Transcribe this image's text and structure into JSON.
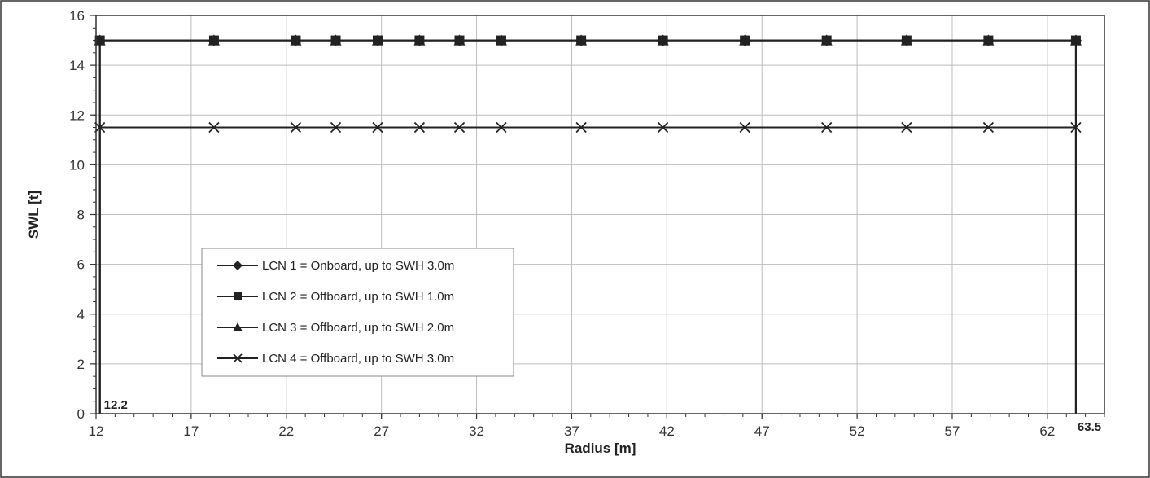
{
  "chart_data": {
    "type": "line",
    "xlabel": "Radius [m]",
    "ylabel": "SWL [t]",
    "xlim": [
      12,
      65
    ],
    "ylim": [
      0,
      16
    ],
    "xticks": [
      12,
      17,
      22,
      27,
      32,
      37,
      42,
      47,
      52,
      57,
      62
    ],
    "yticks": [
      0,
      2,
      4,
      6,
      8,
      10,
      12,
      14,
      16
    ],
    "grid": true,
    "legend_position": "lower-left",
    "colors": {
      "line": "#222222",
      "grid": "#bdbdbd",
      "frame": "#333333"
    },
    "annotations": [
      {
        "text": "12.2",
        "x": 12.2
      },
      {
        "text": "63.5",
        "x": 63.5
      }
    ],
    "series": [
      {
        "name": "LCN 1 = Onboard, up to SWH 3.0m",
        "marker": "diamond",
        "x": [
          12.2,
          18.2,
          22.5,
          24.6,
          26.8,
          29.0,
          31.1,
          33.3,
          37.5,
          41.8,
          46.1,
          50.4,
          54.6,
          58.9,
          63.5
        ],
        "y": [
          15,
          15,
          15,
          15,
          15,
          15,
          15,
          15,
          15,
          15,
          15,
          15,
          15,
          15,
          15
        ]
      },
      {
        "name": "LCN 2 = Offboard, up to SWH 1.0m",
        "marker": "square",
        "x": [
          12.2,
          18.2,
          22.5,
          24.6,
          26.8,
          29.0,
          31.1,
          33.3,
          37.5,
          41.8,
          46.1,
          50.4,
          54.6,
          58.9,
          63.5
        ],
        "y": [
          15,
          15,
          15,
          15,
          15,
          15,
          15,
          15,
          15,
          15,
          15,
          15,
          15,
          15,
          15
        ]
      },
      {
        "name": "LCN 3 = Offboard, up to SWH 2.0m",
        "marker": "triangle",
        "x": [
          12.2,
          18.2,
          22.5,
          24.6,
          26.8,
          29.0,
          31.1,
          33.3,
          37.5,
          41.8,
          46.1,
          50.4,
          54.6,
          58.9,
          63.5
        ],
        "y": [
          15,
          15,
          15,
          15,
          15,
          15,
          15,
          15,
          15,
          15,
          15,
          15,
          15,
          15,
          15
        ]
      },
      {
        "name": "LCN 4 = Offboard, up to SWH 3.0m",
        "marker": "x",
        "x": [
          12.2,
          18.2,
          22.5,
          24.6,
          26.8,
          29.0,
          31.1,
          33.3,
          37.5,
          41.8,
          46.1,
          50.4,
          54.6,
          58.9,
          63.5
        ],
        "y": [
          11.5,
          11.5,
          11.5,
          11.5,
          11.5,
          11.5,
          11.5,
          11.5,
          11.5,
          11.5,
          11.5,
          11.5,
          11.5,
          11.5,
          11.5
        ]
      }
    ]
  }
}
